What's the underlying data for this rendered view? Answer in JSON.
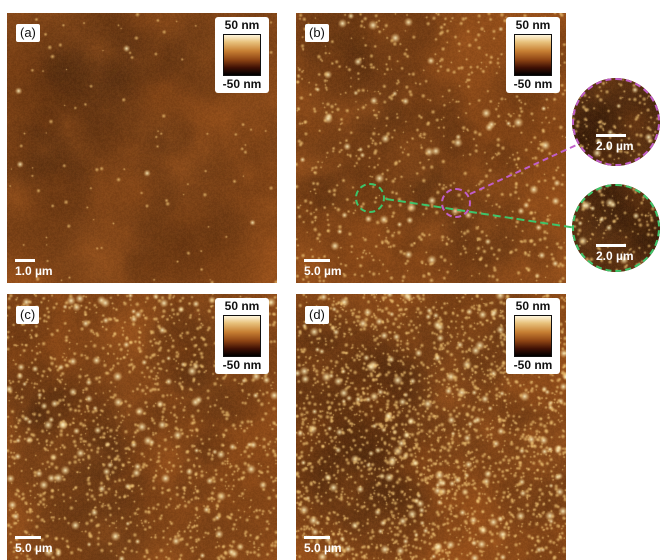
{
  "panels": [
    {
      "label": "(a)",
      "cbar_top": "50 nm",
      "cbar_bottom": "-50 nm",
      "scale": "1.0 µm"
    },
    {
      "label": "(b)",
      "cbar_top": "50 nm",
      "cbar_bottom": "-50 nm",
      "scale": "5.0 µm"
    },
    {
      "label": "(c)",
      "cbar_top": "50 nm",
      "cbar_bottom": "-50 nm",
      "scale": "5.0 µm"
    },
    {
      "label": "(d)",
      "cbar_top": "50 nm",
      "cbar_bottom": "-50 nm",
      "scale": "5.0 µm"
    }
  ],
  "zooms": [
    {
      "scale": "2.0 µm",
      "ring_color": "#c05ec9"
    },
    {
      "scale": "2.0 µm",
      "ring_color": "#3ec46a"
    }
  ],
  "colors": {
    "substrate": "#96501b",
    "magenta_marker": "#c05ec9",
    "green_marker": "#3ec46a"
  }
}
